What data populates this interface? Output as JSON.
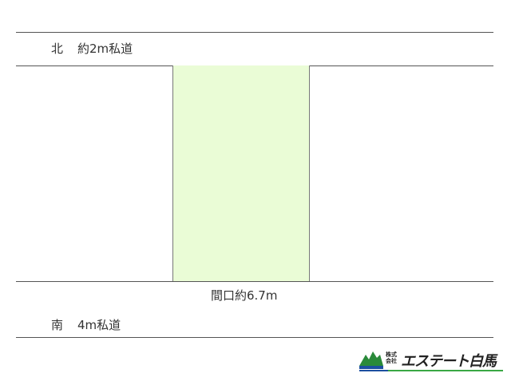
{
  "north": {
    "direction": "北",
    "road": "約2m私道"
  },
  "frontage": "間口約6.7m",
  "south": {
    "direction": "南",
    "road": "4m私道"
  },
  "plot_color": "#eafcd6",
  "logo": {
    "company_type": "株式会社",
    "name": "エステート白馬"
  }
}
